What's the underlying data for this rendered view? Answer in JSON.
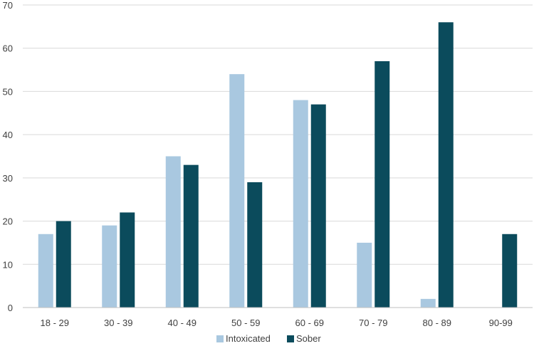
{
  "chart_data": {
    "type": "bar",
    "title": "",
    "xlabel": "",
    "ylabel": "",
    "categories": [
      "18 - 29",
      "30 - 39",
      "40 - 49",
      "50 - 59",
      "60 - 69",
      "70 - 79",
      "80 - 89",
      "90-99"
    ],
    "series": [
      {
        "name": "Intoxicated",
        "color": "#a9c8e0",
        "values": [
          17,
          19,
          35,
          54,
          48,
          15,
          2,
          0
        ]
      },
      {
        "name": "Sober",
        "color": "#0b4b5c",
        "values": [
          20,
          22,
          33,
          29,
          47,
          57,
          66,
          17
        ]
      }
    ],
    "ylim": [
      0,
      70
    ],
    "yticks": [
      0,
      10,
      20,
      30,
      40,
      50,
      60,
      70
    ],
    "grid": true,
    "legend": "bottom-center"
  }
}
